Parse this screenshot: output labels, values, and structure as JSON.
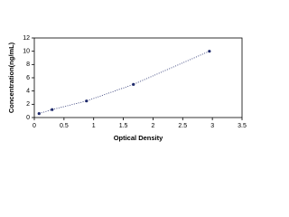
{
  "chart_data": {
    "type": "scatter",
    "x_label": "Optical Density",
    "y_label": "Concentration(ng/mL)",
    "series": [
      {
        "color": "#1f2a6b",
        "x": [
          0.08,
          0.3,
          0.88,
          1.67,
          2.95
        ],
        "values": [
          0.6,
          1.2,
          2.5,
          5,
          10
        ]
      }
    ],
    "line": "dotted",
    "xlim": [
      0,
      3.5
    ],
    "xticks": [
      0,
      0.5,
      1,
      1.5,
      2,
      2.5,
      3,
      3.5
    ],
    "ylim": [
      0,
      12
    ],
    "yticks": [
      0,
      2,
      4,
      6,
      8,
      10,
      12
    ]
  }
}
